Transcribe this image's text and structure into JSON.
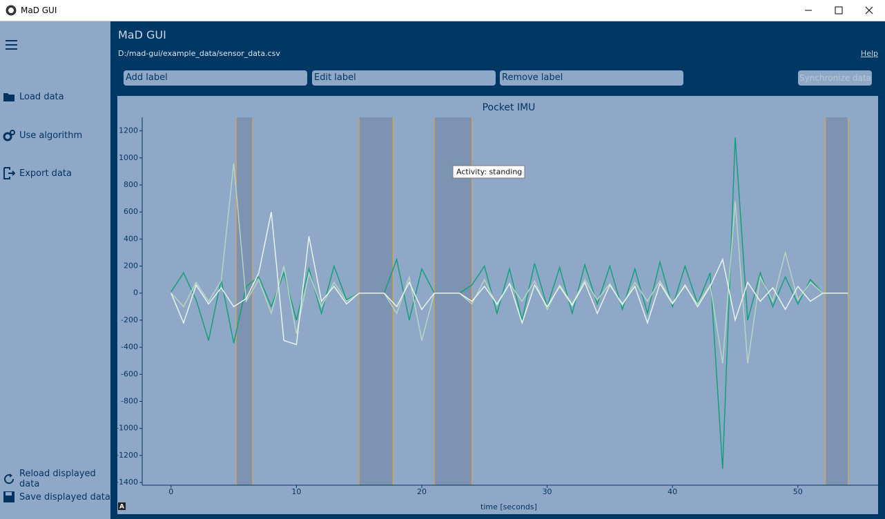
{
  "window": {
    "title": "MaD GUI"
  },
  "header": {
    "title": "MaD GUI",
    "file_path": "D:/mad-gui/example_data/sensor_data.csv",
    "help": "Help"
  },
  "toolbar": {
    "buttons": [
      "Add label",
      "Edit label",
      "Remove label"
    ],
    "sync": "Synchronize data"
  },
  "sidebar": {
    "items": [
      "Load data",
      "Use algorithm",
      "Export data"
    ],
    "bottom_items": [
      "Reload displayed data",
      "Save displayed data"
    ]
  },
  "plot_controls": {
    "autoscale": "A"
  },
  "chart_data": {
    "type": "line",
    "title": "Pocket IMU",
    "x_label": "time [seconds]",
    "annotation": "Activity: standing",
    "x": [
      0,
      1,
      2,
      3,
      4,
      5,
      6,
      7,
      8,
      9,
      10,
      11,
      12,
      13,
      14,
      15,
      16,
      17,
      18,
      19,
      20,
      21,
      22,
      23,
      24,
      25,
      26,
      27,
      28,
      29,
      30,
      31,
      32,
      33,
      34,
      35,
      36,
      37,
      38,
      39,
      40,
      41,
      42,
      43,
      44,
      45,
      46,
      47,
      48,
      49,
      50,
      51,
      52,
      53,
      54
    ],
    "series": [
      {
        "color": "#12a07a",
        "values": [
          10,
          150,
          -50,
          -350,
          100,
          -370,
          50,
          120,
          -100,
          150,
          -200,
          180,
          -150,
          200,
          -50,
          0,
          0,
          0,
          250,
          -200,
          180,
          0,
          0,
          0,
          60,
          200,
          -150,
          180,
          -200,
          220,
          -100,
          190,
          -150,
          210,
          -80,
          200,
          -120,
          180,
          -150,
          230,
          -100,
          200,
          -80,
          150,
          -1300,
          1150,
          -200,
          150,
          -100,
          120,
          -80,
          100,
          0,
          0,
          0
        ]
      },
      {
        "color": "#b5d6c0",
        "values": [
          0,
          -100,
          80,
          -60,
          90,
          960,
          -60,
          100,
          -150,
          200,
          -300,
          150,
          -100,
          80,
          -60,
          0,
          0,
          0,
          -150,
          120,
          -350,
          0,
          0,
          0,
          -80,
          100,
          -90,
          70,
          -60,
          90,
          -120,
          60,
          -80,
          100,
          -50,
          70,
          -90,
          80,
          -60,
          90,
          -70,
          50,
          -80,
          60,
          -520,
          680,
          -520,
          120,
          -60,
          300,
          -50,
          80,
          0,
          0,
          0
        ]
      },
      {
        "color": "#e8f4ec",
        "values": [
          0,
          -220,
          60,
          -80,
          40,
          -100,
          -40,
          150,
          600,
          -350,
          -380,
          420,
          -60,
          50,
          -80,
          0,
          0,
          0,
          -100,
          80,
          -120,
          0,
          0,
          0,
          -60,
          50,
          -80,
          70,
          -220,
          60,
          -100,
          50,
          -90,
          80,
          -150,
          60,
          -80,
          50,
          -220,
          70,
          -80,
          60,
          -100,
          50,
          250,
          -200,
          80,
          -60,
          40,
          -120,
          50,
          -60,
          0,
          0,
          0
        ]
      }
    ],
    "regions": [
      {
        "start": 5.2,
        "end": 6.5
      },
      {
        "start": 15,
        "end": 17.7
      },
      {
        "start": 21,
        "end": 24
      },
      {
        "start": 52.2,
        "end": 54
      }
    ],
    "region_color": "#6f82a0",
    "region_edge_color": "#f0a030",
    "xlim": [
      -2.3,
      56.4
    ],
    "ylim": [
      -1420,
      1300
    ],
    "xticks": [
      0,
      10,
      20,
      30,
      40,
      50
    ],
    "yticks": [
      -1400,
      -1200,
      -1000,
      -800,
      -600,
      -400,
      -200,
      0,
      200,
      400,
      600,
      800,
      1000,
      1200
    ]
  }
}
